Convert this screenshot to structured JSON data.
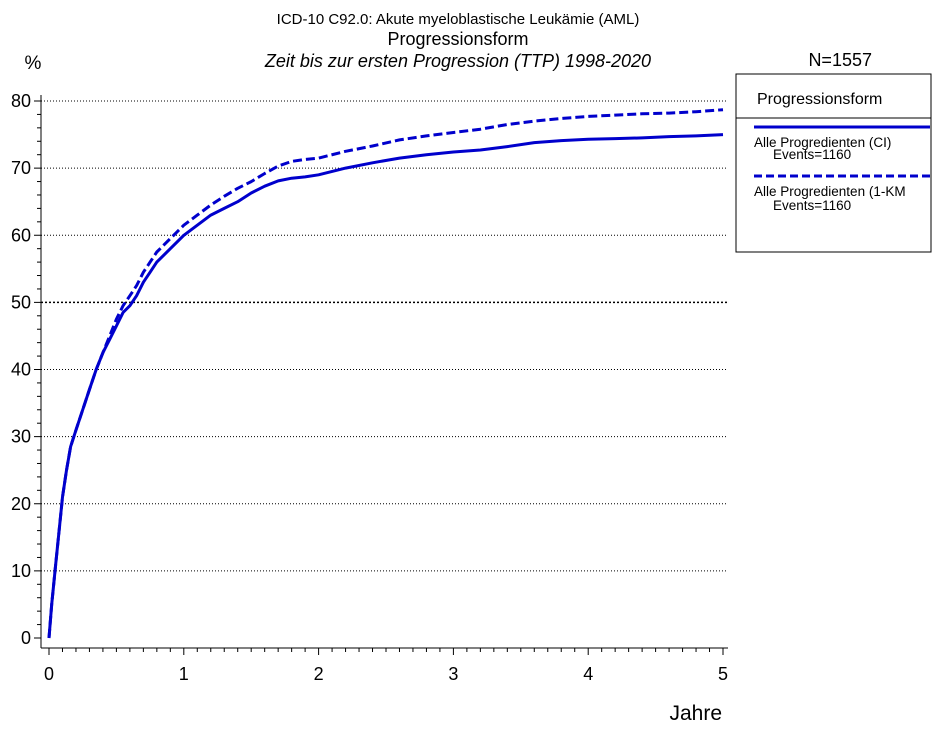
{
  "chart_data": {
    "type": "line",
    "title_line1": "ICD-10 C92.0: Akute myeloblastische Leukämie (AML)",
    "title_line2": "Progressionsform",
    "subtitle": "Zeit bis zur ersten Progression (TTP) 1998-2020",
    "n_label": "N=1557",
    "ylabel": "%",
    "xlabel": "Jahre",
    "xlim": [
      0,
      5
    ],
    "ylim": [
      0,
      80
    ],
    "x_ticks": [
      "0",
      "1",
      "2",
      "3",
      "4",
      "5"
    ],
    "y_ticks": [
      "0",
      "10",
      "20",
      "30",
      "40",
      "50",
      "60",
      "70",
      "80"
    ],
    "grid": "horizontal dotted at 10..80, heavier at 50",
    "legend": {
      "title": "Progressionsform",
      "placement": "right"
    },
    "series": [
      {
        "name": "Alle Progredienten (CI)",
        "events": "Events=1160",
        "style": "solid",
        "color": "#0000cc",
        "points": [
          [
            0,
            0
          ],
          [
            0.02,
            5
          ],
          [
            0.05,
            11
          ],
          [
            0.08,
            17
          ],
          [
            0.1,
            21
          ],
          [
            0.13,
            25
          ],
          [
            0.16,
            28.5
          ],
          [
            0.2,
            31
          ],
          [
            0.25,
            34
          ],
          [
            0.3,
            37
          ],
          [
            0.35,
            40
          ],
          [
            0.4,
            42.5
          ],
          [
            0.45,
            44.5
          ],
          [
            0.5,
            46.5
          ],
          [
            0.55,
            48.5
          ],
          [
            0.6,
            49.5
          ],
          [
            0.65,
            51
          ],
          [
            0.7,
            53
          ],
          [
            0.75,
            54.5
          ],
          [
            0.8,
            56
          ],
          [
            0.9,
            58
          ],
          [
            1.0,
            60
          ],
          [
            1.1,
            61.5
          ],
          [
            1.2,
            63
          ],
          [
            1.3,
            64
          ],
          [
            1.4,
            65
          ],
          [
            1.5,
            66.3
          ],
          [
            1.6,
            67.3
          ],
          [
            1.7,
            68.1
          ],
          [
            1.8,
            68.5
          ],
          [
            1.9,
            68.7
          ],
          [
            2.0,
            69
          ],
          [
            2.2,
            70
          ],
          [
            2.4,
            70.8
          ],
          [
            2.6,
            71.5
          ],
          [
            2.8,
            72
          ],
          [
            3.0,
            72.4
          ],
          [
            3.2,
            72.7
          ],
          [
            3.4,
            73.2
          ],
          [
            3.6,
            73.8
          ],
          [
            3.8,
            74.1
          ],
          [
            4.0,
            74.3
          ],
          [
            4.2,
            74.4
          ],
          [
            4.4,
            74.5
          ],
          [
            4.6,
            74.7
          ],
          [
            4.8,
            74.8
          ],
          [
            5.0,
            75
          ]
        ]
      },
      {
        "name": "Alle Progredienten (1-KM",
        "events": "Events=1160",
        "style": "dashed",
        "color": "#0000cc",
        "points": [
          [
            0,
            0
          ],
          [
            0.02,
            5
          ],
          [
            0.05,
            11
          ],
          [
            0.08,
            17
          ],
          [
            0.1,
            21
          ],
          [
            0.13,
            25
          ],
          [
            0.16,
            28.5
          ],
          [
            0.2,
            31
          ],
          [
            0.25,
            34
          ],
          [
            0.3,
            37
          ],
          [
            0.35,
            40
          ],
          [
            0.4,
            42.5
          ],
          [
            0.45,
            45
          ],
          [
            0.5,
            47.5
          ],
          [
            0.55,
            49.5
          ],
          [
            0.6,
            51
          ],
          [
            0.65,
            52.5
          ],
          [
            0.7,
            54.5
          ],
          [
            0.75,
            56
          ],
          [
            0.8,
            57.5
          ],
          [
            0.9,
            59.5
          ],
          [
            1.0,
            61.5
          ],
          [
            1.1,
            63
          ],
          [
            1.2,
            64.5
          ],
          [
            1.3,
            65.8
          ],
          [
            1.4,
            67
          ],
          [
            1.5,
            68
          ],
          [
            1.6,
            69.2
          ],
          [
            1.7,
            70.3
          ],
          [
            1.8,
            71
          ],
          [
            1.9,
            71.3
          ],
          [
            2.0,
            71.5
          ],
          [
            2.2,
            72.5
          ],
          [
            2.4,
            73.3
          ],
          [
            2.6,
            74.2
          ],
          [
            2.8,
            74.8
          ],
          [
            3.0,
            75.3
          ],
          [
            3.2,
            75.8
          ],
          [
            3.4,
            76.5
          ],
          [
            3.6,
            77
          ],
          [
            3.8,
            77.4
          ],
          [
            4.0,
            77.7
          ],
          [
            4.2,
            77.9
          ],
          [
            4.4,
            78.1
          ],
          [
            4.6,
            78.2
          ],
          [
            4.8,
            78.4
          ],
          [
            5.0,
            78.7
          ]
        ]
      }
    ]
  }
}
